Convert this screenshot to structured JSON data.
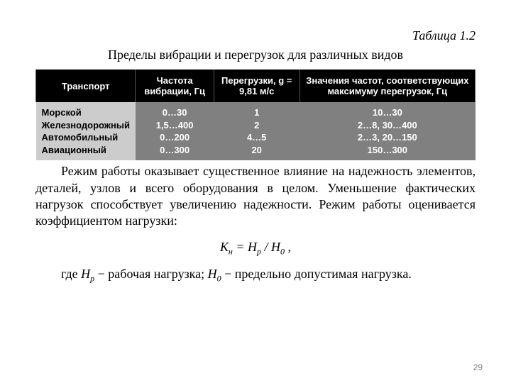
{
  "caption": "Таблица 1.2",
  "title": "Пределы вибрации и перегрузок для различных видов",
  "table": {
    "columns": [
      "Транспорт",
      "Частота вибрации, Гц",
      "Перегрузки, g = 9,81 м/с",
      "Значения частот, соответствующих максимуму перегрузок, Гц"
    ],
    "col0": "Морской\nЖелезнодорожный\nАвтомобильный\nАвиационный",
    "col1": "0…30\n1,5…400\n0…200\n0…300",
    "col2": "1\n2\n4…5\n20",
    "col3": "10…30\n2…8, 30…400\n2…3, 20…150\n150…300",
    "header_bg": "#000000",
    "header_fg": "#ffffff",
    "rowhead_bg": "#cccccc",
    "cell_bg": "#808080",
    "cell_fg": "#ffffff",
    "font_family": "Arial",
    "font_size_pt": 10
  },
  "paragraph": "Режим работы оказывает существенное влияние на надежность элементов, деталей, узлов и всего оборудования в целом. Уменьшение фактических нагрузок способствует увеличению надежности. Режим работы оценивается коэффициентом нагрузки:",
  "formula": {
    "K": "К",
    "K_sub": "н",
    "H1": "Н",
    "H1_sub": "р",
    "H2": "Н",
    "H2_sub": "0",
    "tail": " ,"
  },
  "where": {
    "prefix": "где ",
    "H1": "Н",
    "H1_sub": "р",
    "mid1": " − рабочая нагрузка; ",
    "H2": "Н",
    "H2_sub": "0",
    "mid2": " − предельно допустимая нагрузка."
  },
  "page_number": "29"
}
